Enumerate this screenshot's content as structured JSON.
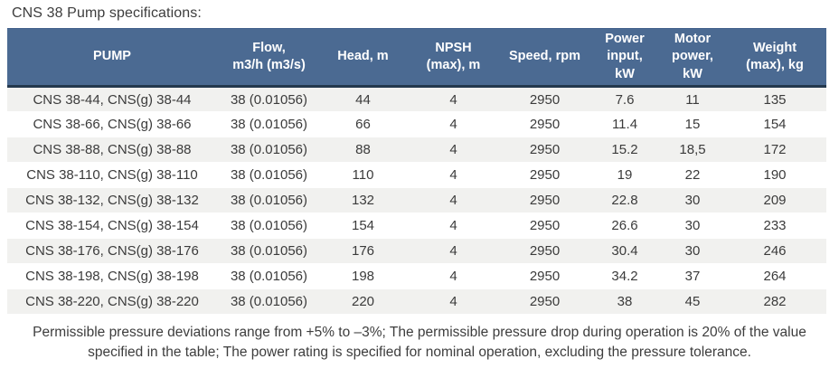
{
  "page": {
    "title": "CNS 38 Pump specifications:"
  },
  "table": {
    "columns": [
      {
        "id": "pump",
        "label": "PUMP"
      },
      {
        "id": "flow",
        "label": "Flow,\nm3/h (m3/s)"
      },
      {
        "id": "head",
        "label": "Head, m"
      },
      {
        "id": "npsh",
        "label": "NPSH\n(max), m"
      },
      {
        "id": "speed",
        "label": "Speed, rpm"
      },
      {
        "id": "power",
        "label": "Power\ninput,\nkW"
      },
      {
        "id": "motor",
        "label": "Motor\npower,\nkW"
      },
      {
        "id": "weight",
        "label": "Weight\n(max), kg"
      }
    ],
    "rows": [
      [
        "CNS 38-44, CNS(g) 38-44",
        "38 (0.01056)",
        "44",
        "4",
        "2950",
        "7.6",
        "11",
        "135"
      ],
      [
        "CNS 38-66, CNS(g) 38-66",
        "38 (0.01056)",
        "66",
        "4",
        "2950",
        "11.4",
        "15",
        "154"
      ],
      [
        "CNS 38-88, CNS(g) 38-88",
        "38 (0.01056)",
        "88",
        "4",
        "2950",
        "15.2",
        "18,5",
        "172"
      ],
      [
        "CNS 38-110, CNS(g) 38-110",
        "38 (0.01056)",
        "110",
        "4",
        "2950",
        "19",
        "22",
        "190"
      ],
      [
        "CNS 38-132, CNS(g) 38-132",
        "38 (0.01056)",
        "132",
        "4",
        "2950",
        "22.8",
        "30",
        "209"
      ],
      [
        "CNS 38-154, CNS(g) 38-154",
        "38 (0.01056)",
        "154",
        "4",
        "2950",
        "26.6",
        "30",
        "233"
      ],
      [
        "CNS 38-176, CNS(g) 38-176",
        "38 (0.01056)",
        "176",
        "4",
        "2950",
        "30.4",
        "30",
        "246"
      ],
      [
        "CNS 38-198, CNS(g) 38-198",
        "38 (0.01056)",
        "198",
        "4",
        "2950",
        "34.2",
        "37",
        "264"
      ],
      [
        "CNS 38-220, CNS(g) 38-220",
        "38 (0.01056)",
        "220",
        "4",
        "2950",
        "38",
        "45",
        "282"
      ]
    ]
  },
  "footer": {
    "note": "Permissible pressure deviations range from +5% to –3%; The permissible pressure drop during operation is 20% of the value specified in the table; The power rating is specified for nominal operation, excluding the pressure tolerance."
  },
  "colors": {
    "header_bg": "#4b6a92",
    "header_text": "#ffffff",
    "header_bottom_border": "#24384d",
    "row_stripe": "#f1f1ef",
    "body_text": "#3d3d3d",
    "page_bg": "#ffffff"
  }
}
